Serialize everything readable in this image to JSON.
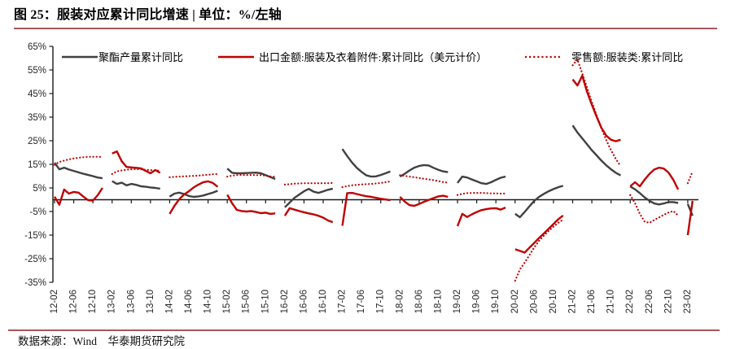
{
  "title": "图 25：服装对应累计同比增速 | 单位：%/左轴",
  "footer": "数据来源：Wind　华泰期货研究院",
  "accent_rule_color": "#a9565a",
  "chart_data": {
    "type": "line",
    "title": "服装对应累计同比增速",
    "unit": "%/左轴",
    "ylim": [
      -35,
      65
    ],
    "ytick_step": 10,
    "y_tick_labels": [
      "65%",
      "55%",
      "45%",
      "35%",
      "25%",
      "15%",
      "5%",
      "-5%",
      "-15%",
      "-25%",
      "-35%"
    ],
    "x_tick_labels": [
      "12-02",
      "12-06",
      "12-10",
      "13-02",
      "13-06",
      "13-10",
      "14-02",
      "14-06",
      "14-10",
      "15-02",
      "15-06",
      "15-10",
      "16-02",
      "16-06",
      "16-10",
      "17-02",
      "17-06",
      "17-10",
      "18-02",
      "18-06",
      "18-10",
      "19-02",
      "19-06",
      "19-10",
      "20-02",
      "20-06",
      "20-10",
      "21-02",
      "21-06",
      "21-10",
      "22-02",
      "22-06",
      "22-10",
      "23-02"
    ],
    "axis_color": "#1a1a1a",
    "grid": false,
    "legend_position": "top",
    "note": "each yearly segment holds monthly cumulative YoY values starting in February; lines break between Dec and next Feb",
    "series": [
      {
        "name": "聚酯产量累计同比",
        "color": "#404040",
        "style": "solid",
        "segments": [
          {
            "year": 2012,
            "values": [
              15.7,
              12.9,
              13.6,
              12.8,
              12.2,
              11.6,
              11.0,
              10.5,
              10.0,
              9.4,
              9.1
            ]
          },
          {
            "year": 2013,
            "values": [
              7.9,
              6.7,
              7.2,
              6.1,
              6.7,
              6.3,
              5.7,
              5.5,
              5.2,
              5.0,
              4.7
            ]
          },
          {
            "year": 2014,
            "values": [
              1.3,
              2.6,
              3.0,
              2.4,
              1.6,
              1.2,
              1.4,
              1.8,
              2.4,
              3.0,
              3.8
            ]
          },
          {
            "year": 2015,
            "values": [
              13.2,
              11.4,
              11.2,
              11.2,
              11.3,
              11.4,
              11.5,
              11.2,
              10.4,
              9.6,
              8.8
            ]
          },
          {
            "year": 2016,
            "values": [
              -3.2,
              -1.2,
              0.8,
              2.2,
              3.6,
              4.6,
              3.4,
              2.9,
              3.5,
              4.2,
              4.7
            ]
          },
          {
            "year": 2017,
            "values": [
              21.5,
              18.5,
              15.8,
              13.5,
              11.8,
              10.3,
              9.8,
              9.9,
              10.5,
              11.2,
              12.0
            ]
          },
          {
            "year": 2018,
            "values": [
              9.8,
              11.0,
              12.4,
              13.6,
              14.3,
              14.7,
              14.5,
              13.5,
              12.7,
              12.0,
              11.7
            ]
          },
          {
            "year": 2019,
            "values": [
              7.1,
              9.8,
              9.4,
              8.6,
              7.8,
              7.0,
              6.7,
              7.4,
              8.4,
              9.3,
              9.8
            ]
          },
          {
            "year": 2020,
            "values": [
              -6.0,
              -7.4,
              -5.2,
              -2.8,
              -0.5,
              1.2,
              2.5,
              3.6,
              4.5,
              5.3,
              5.9
            ]
          },
          {
            "year": 2021,
            "values": [
              31.5,
              28.5,
              26.0,
              23.5,
              21.0,
              18.8,
              16.6,
              14.6,
              12.9,
              11.4,
              10.3
            ]
          },
          {
            "year": 2022,
            "values": [
              5.6,
              4.4,
              2.8,
              1.0,
              -0.5,
              -1.6,
              -2.0,
              -1.6,
              -1.0,
              -1.0,
              -1.4
            ]
          },
          {
            "year": 2023,
            "values": [
              -1.8,
              -6.8
            ]
          }
        ]
      },
      {
        "name": "出口金额:服装及衣着附件:累计同比（美元计价）",
        "color": "#c00000",
        "style": "solid",
        "segments": [
          {
            "year": 2012,
            "values": [
              1.3,
              -2.1,
              4.3,
              2.6,
              3.3,
              3.0,
              1.3,
              -0.2,
              -0.4,
              1.9,
              5.0
            ]
          },
          {
            "year": 2013,
            "values": [
              19.6,
              20.5,
              16.3,
              13.9,
              13.7,
              13.5,
              13.3,
              12.2,
              11.2,
              12.6,
              11.4
            ]
          },
          {
            "year": 2014,
            "values": [
              -6.0,
              -2.6,
              0.2,
              2.2,
              3.6,
              5.2,
              6.4,
              7.4,
              7.8,
              7.1,
              5.5
            ]
          },
          {
            "year": 2015,
            "values": [
              2.1,
              -1.5,
              -4.3,
              -4.8,
              -5.0,
              -4.8,
              -5.2,
              -5.7,
              -5.5,
              -6.0,
              -5.8
            ]
          },
          {
            "year": 2016,
            "values": [
              -6.8,
              -3.6,
              -4.2,
              -4.8,
              -5.3,
              -5.8,
              -6.2,
              -6.8,
              -7.6,
              -8.8,
              -9.5
            ]
          },
          {
            "year": 2017,
            "values": [
              -11.0,
              2.8,
              2.9,
              2.4,
              1.9,
              1.5,
              1.2,
              0.8,
              0.4,
              0.1,
              -0.2
            ]
          },
          {
            "year": 2018,
            "values": [
              1.2,
              -0.8,
              -2.3,
              -2.6,
              -1.8,
              -0.9,
              -0.1,
              0.7,
              1.4,
              1.7,
              1.2
            ]
          },
          {
            "year": 2019,
            "values": [
              -11.2,
              -6.0,
              -7.3,
              -6.2,
              -5.2,
              -4.4,
              -4.0,
              -3.7,
              -3.6,
              -4.2,
              -3.3
            ]
          },
          {
            "year": 2020,
            "values": [
              -21.0,
              -21.7,
              -22.4,
              -20.3,
              -18.3,
              -16.2,
              -14.3,
              -12.3,
              -10.3,
              -8.3,
              -6.7
            ]
          },
          {
            "year": 2021,
            "values": [
              51.0,
              48.4,
              52.6,
              45.7,
              40.3,
              35.2,
              30.5,
              27.2,
              25.4,
              24.8,
              25.4
            ]
          },
          {
            "year": 2022,
            "values": [
              5.7,
              7.4,
              5.7,
              8.5,
              10.9,
              12.8,
              13.6,
              13.2,
              11.5,
              8.4,
              4.3
            ]
          },
          {
            "year": 2023,
            "values": [
              -15.0,
              -0.5
            ]
          }
        ]
      },
      {
        "name": "零售额:服装类:累计同比",
        "color": "#c00000",
        "style": "dotted",
        "segments": [
          {
            "year": 2012,
            "values": [
              14.8,
              16.0,
              16.6,
              17.1,
              17.5,
              17.8,
              18.0,
              18.2,
              18.2,
              18.2,
              18.1
            ]
          },
          {
            "year": 2013,
            "values": [
              10.9,
              12.0,
              12.4,
              12.7,
              12.9,
              13.0,
              12.9,
              12.7,
              12.6,
              12.4,
              12.3
            ]
          },
          {
            "year": 2014,
            "values": [
              9.5,
              9.7,
              9.8,
              9.9,
              10.0,
              10.1,
              10.2,
              10.4,
              10.6,
              10.8,
              10.9
            ]
          },
          {
            "year": 2015,
            "values": [
              9.8,
              10.2,
              10.4,
              10.5,
              10.5,
              10.5,
              10.4,
              10.4,
              10.2,
              9.9,
              9.7
            ]
          },
          {
            "year": 2016,
            "values": [
              6.4,
              6.6,
              6.8,
              6.9,
              7.0,
              7.0,
              7.0,
              7.0,
              7.0,
              7.0,
              7.1
            ]
          },
          {
            "year": 2017,
            "values": [
              5.3,
              5.8,
              6.1,
              6.3,
              6.5,
              6.6,
              6.7,
              6.9,
              7.1,
              7.4,
              7.8
            ]
          },
          {
            "year": 2018,
            "values": [
              10.4,
              10.1,
              9.8,
              9.5,
              9.2,
              8.9,
              8.6,
              8.3,
              7.9,
              7.5,
              7.2
            ]
          },
          {
            "year": 2019,
            "values": [
              2.0,
              2.5,
              2.8,
              2.9,
              2.9,
              2.9,
              2.8,
              2.7,
              2.7,
              2.6,
              2.6
            ]
          },
          {
            "year": 2020,
            "values": [
              -34.3,
              -29.5,
              -26.7,
              -23.5,
              -20.2,
              -17.4,
              -15.2,
              -13.2,
              -11.4,
              -9.8,
              -8.4
            ]
          },
          {
            "year": 2021,
            "values": [
              57.0,
              59.5,
              53.5,
              47.5,
              41.5,
              35.8,
              30.3,
              25.3,
              21.0,
              17.3,
              14.2
            ]
          },
          {
            "year": 2022,
            "values": [
              2.0,
              -1.5,
              -6.0,
              -9.3,
              -9.8,
              -8.6,
              -7.5,
              -6.4,
              -5.4,
              -4.8,
              -6.7
            ]
          },
          {
            "year": 2023,
            "values": [
              7.0,
              12.0
            ]
          }
        ]
      }
    ]
  }
}
